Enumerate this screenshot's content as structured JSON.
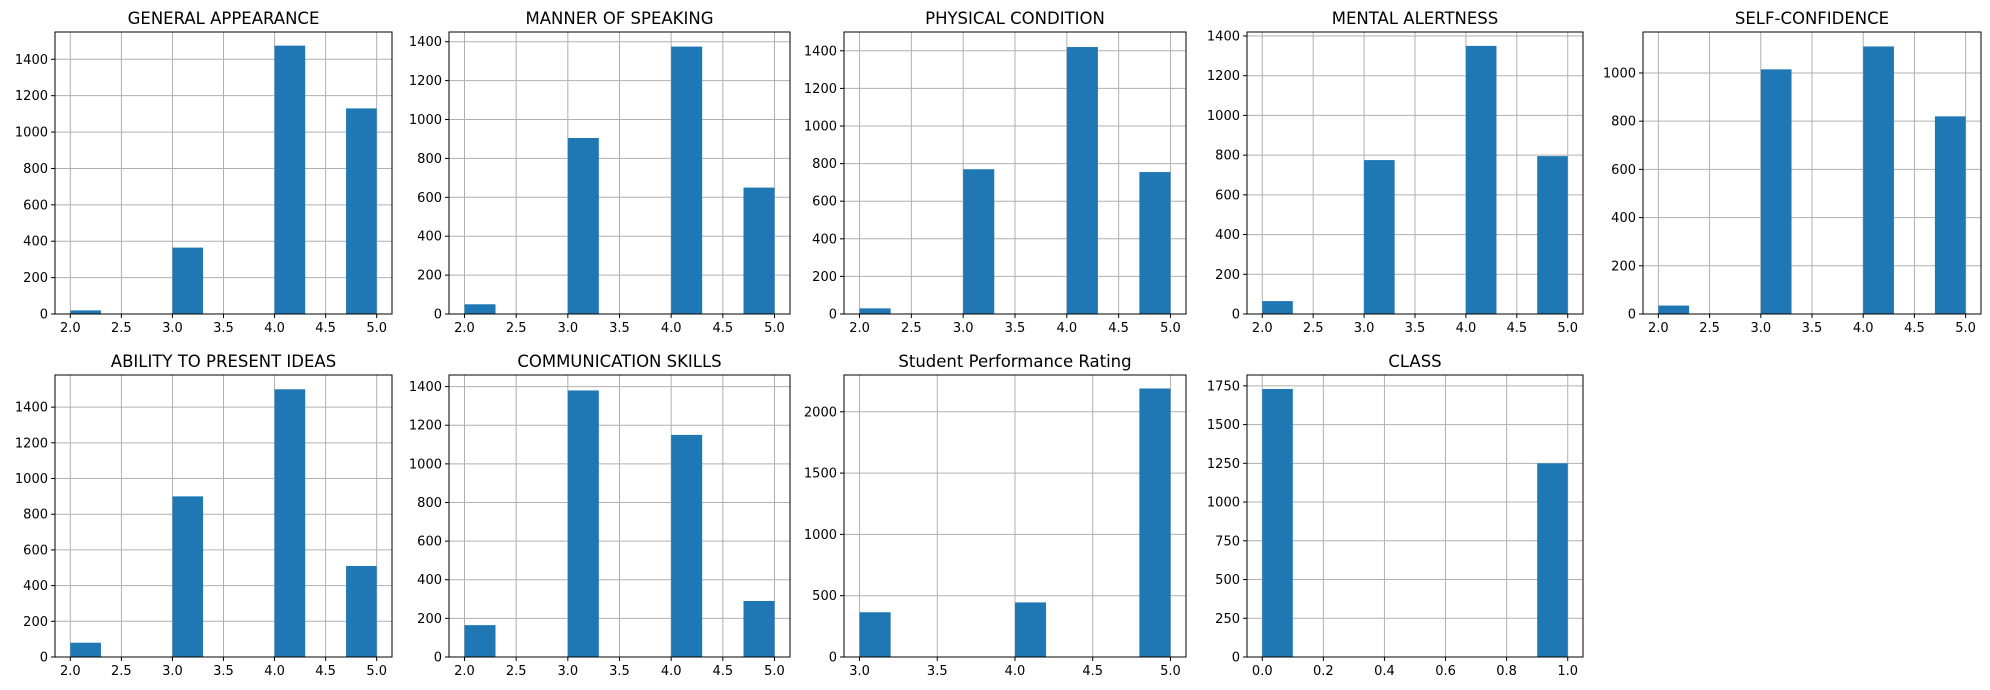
{
  "chart_data": [
    {
      "type": "bar",
      "title": "GENERAL APPEARANCE",
      "xlim": [
        1.85,
        5.15
      ],
      "ylim": [
        0,
        1550
      ],
      "xticks": [
        2.0,
        2.5,
        3.0,
        3.5,
        4.0,
        4.5,
        5.0
      ],
      "yticks": [
        0,
        200,
        400,
        600,
        800,
        1000,
        1200,
        1400
      ],
      "bars": [
        {
          "x0": 2.0,
          "x1": 2.3,
          "value": 20
        },
        {
          "x0": 3.0,
          "x1": 3.3,
          "value": 365
        },
        {
          "x0": 4.0,
          "x1": 4.3,
          "value": 1475
        },
        {
          "x0": 4.7,
          "x1": 5.0,
          "value": 1130
        }
      ]
    },
    {
      "type": "bar",
      "title": "MANNER OF SPEAKING",
      "xlim": [
        1.85,
        5.15
      ],
      "ylim": [
        0,
        1450
      ],
      "xticks": [
        2.0,
        2.5,
        3.0,
        3.5,
        4.0,
        4.5,
        5.0
      ],
      "yticks": [
        0,
        200,
        400,
        600,
        800,
        1000,
        1200,
        1400
      ],
      "bars": [
        {
          "x0": 2.0,
          "x1": 2.3,
          "value": 50
        },
        {
          "x0": 3.0,
          "x1": 3.3,
          "value": 905
        },
        {
          "x0": 4.0,
          "x1": 4.3,
          "value": 1375
        },
        {
          "x0": 4.7,
          "x1": 5.0,
          "value": 650
        }
      ]
    },
    {
      "type": "bar",
      "title": "PHYSICAL CONDITION",
      "xlim": [
        1.85,
        5.15
      ],
      "ylim": [
        0,
        1500
      ],
      "xticks": [
        2.0,
        2.5,
        3.0,
        3.5,
        4.0,
        4.5,
        5.0
      ],
      "yticks": [
        0,
        200,
        400,
        600,
        800,
        1000,
        1200,
        1400
      ],
      "bars": [
        {
          "x0": 2.0,
          "x1": 2.3,
          "value": 30
        },
        {
          "x0": 3.0,
          "x1": 3.3,
          "value": 770
        },
        {
          "x0": 4.0,
          "x1": 4.3,
          "value": 1420
        },
        {
          "x0": 4.7,
          "x1": 5.0,
          "value": 755
        }
      ]
    },
    {
      "type": "bar",
      "title": "MENTAL ALERTNESS",
      "xlim": [
        1.85,
        5.15
      ],
      "ylim": [
        0,
        1420
      ],
      "xticks": [
        2.0,
        2.5,
        3.0,
        3.5,
        4.0,
        4.5,
        5.0
      ],
      "yticks": [
        0,
        200,
        400,
        600,
        800,
        1000,
        1200,
        1400
      ],
      "bars": [
        {
          "x0": 2.0,
          "x1": 2.3,
          "value": 65
        },
        {
          "x0": 3.0,
          "x1": 3.3,
          "value": 775
        },
        {
          "x0": 4.0,
          "x1": 4.3,
          "value": 1350
        },
        {
          "x0": 4.7,
          "x1": 5.0,
          "value": 795
        }
      ]
    },
    {
      "type": "bar",
      "title": "SELF-CONFIDENCE",
      "xlim": [
        1.85,
        5.15
      ],
      "ylim": [
        0,
        1170
      ],
      "xticks": [
        2.0,
        2.5,
        3.0,
        3.5,
        4.0,
        4.5,
        5.0
      ],
      "yticks": [
        0,
        200,
        400,
        600,
        800,
        1000
      ],
      "bars": [
        {
          "x0": 2.0,
          "x1": 2.3,
          "value": 35
        },
        {
          "x0": 3.0,
          "x1": 3.3,
          "value": 1015
        },
        {
          "x0": 4.0,
          "x1": 4.3,
          "value": 1110
        },
        {
          "x0": 4.7,
          "x1": 5.0,
          "value": 820
        }
      ]
    },
    {
      "type": "bar",
      "title": "ABILITY TO PRESENT IDEAS",
      "xlim": [
        1.85,
        5.15
      ],
      "ylim": [
        0,
        1580
      ],
      "xticks": [
        2.0,
        2.5,
        3.0,
        3.5,
        4.0,
        4.5,
        5.0
      ],
      "yticks": [
        0,
        200,
        400,
        600,
        800,
        1000,
        1200,
        1400
      ],
      "bars": [
        {
          "x0": 2.0,
          "x1": 2.3,
          "value": 80
        },
        {
          "x0": 3.0,
          "x1": 3.3,
          "value": 900
        },
        {
          "x0": 4.0,
          "x1": 4.3,
          "value": 1500
        },
        {
          "x0": 4.7,
          "x1": 5.0,
          "value": 510
        }
      ]
    },
    {
      "type": "bar",
      "title": "COMMUNICATION SKILLS",
      "xlim": [
        1.85,
        5.15
      ],
      "ylim": [
        0,
        1460
      ],
      "xticks": [
        2.0,
        2.5,
        3.0,
        3.5,
        4.0,
        4.5,
        5.0
      ],
      "yticks": [
        0,
        200,
        400,
        600,
        800,
        1000,
        1200,
        1400
      ],
      "bars": [
        {
          "x0": 2.0,
          "x1": 2.3,
          "value": 165
        },
        {
          "x0": 3.0,
          "x1": 3.3,
          "value": 1380
        },
        {
          "x0": 4.0,
          "x1": 4.3,
          "value": 1150
        },
        {
          "x0": 4.7,
          "x1": 5.0,
          "value": 290
        }
      ]
    },
    {
      "type": "bar",
      "title": "Student Performance Rating",
      "xlim": [
        2.9,
        5.1
      ],
      "ylim": [
        0,
        2300
      ],
      "xticks": [
        3.0,
        3.5,
        4.0,
        4.5,
        5.0
      ],
      "yticks": [
        0,
        500,
        1000,
        1500,
        2000
      ],
      "bars": [
        {
          "x0": 3.0,
          "x1": 3.2,
          "value": 365
        },
        {
          "x0": 4.0,
          "x1": 4.2,
          "value": 445
        },
        {
          "x0": 4.8,
          "x1": 5.0,
          "value": 2190
        }
      ]
    },
    {
      "type": "bar",
      "title": "CLASS",
      "xlim": [
        -0.05,
        1.05
      ],
      "ylim": [
        0,
        1820
      ],
      "xticks": [
        0.0,
        0.2,
        0.4,
        0.6,
        0.8,
        1.0
      ],
      "yticks": [
        0,
        250,
        500,
        750,
        1000,
        1250,
        1500,
        1750
      ],
      "bars": [
        {
          "x0": 0.0,
          "x1": 0.1,
          "value": 1730
        },
        {
          "x0": 0.9,
          "x1": 1.0,
          "value": 1250
        }
      ]
    }
  ]
}
